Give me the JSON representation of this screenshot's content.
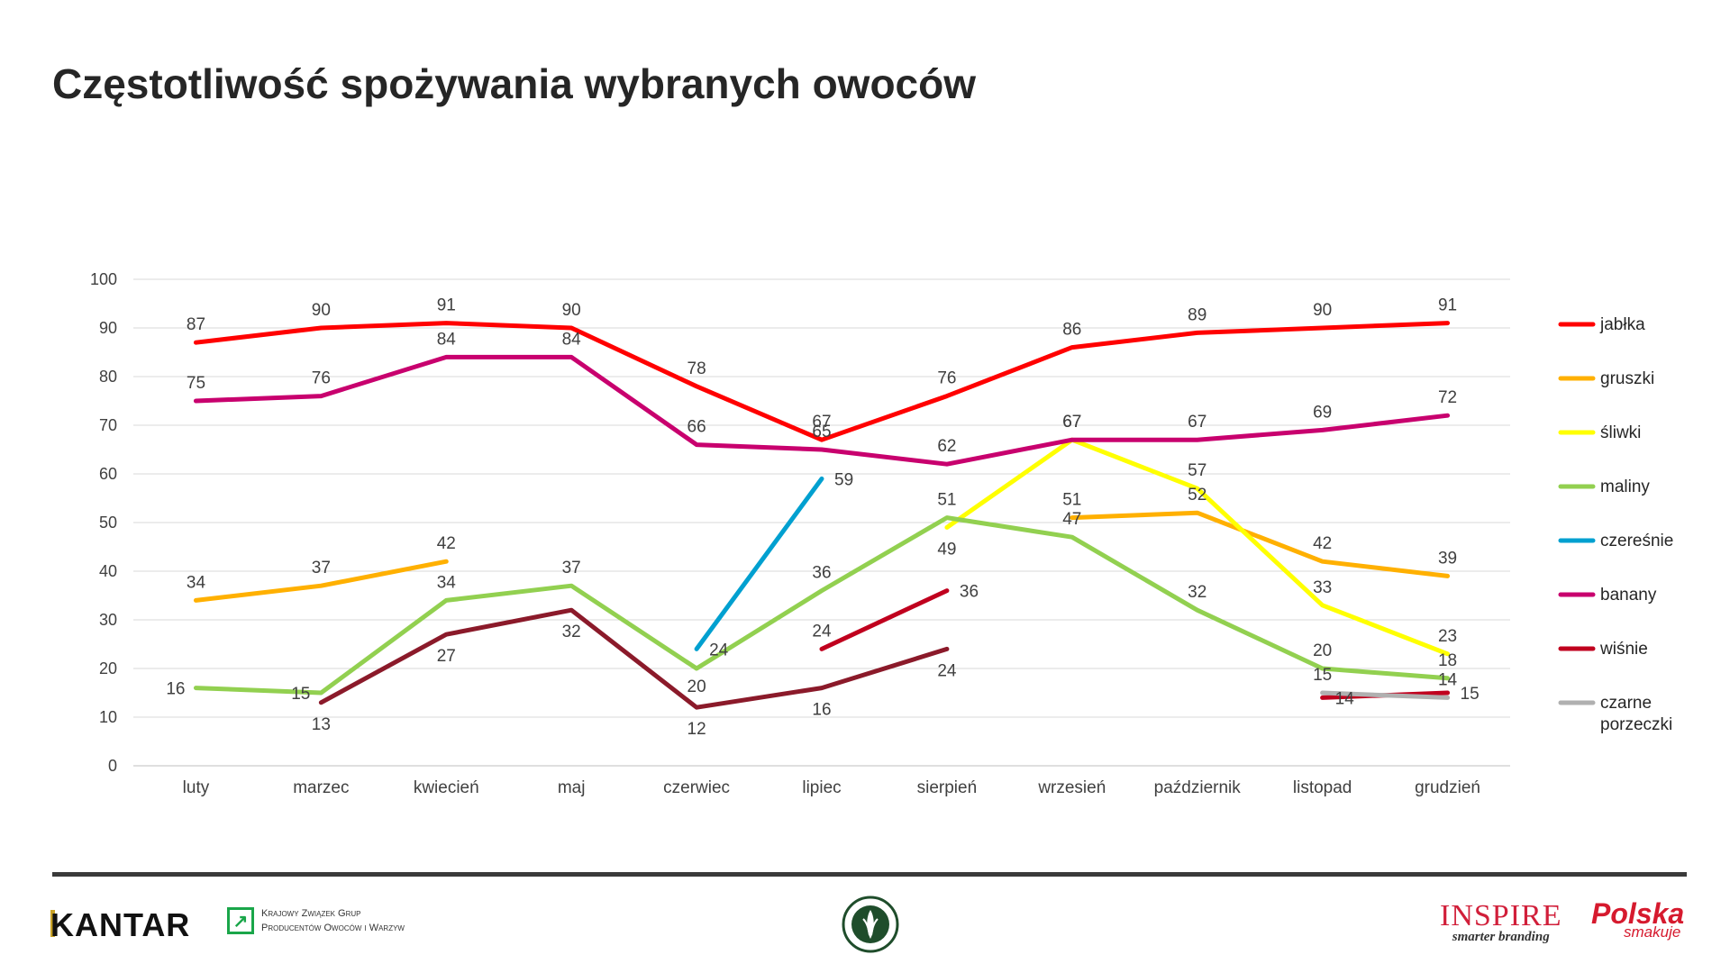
{
  "page": {
    "title": "Częstotliwość spożywania wybranych owoców"
  },
  "footer": {
    "kantar": "KANTAR",
    "kzgp_line1": "Krajowy Związek Grup",
    "kzgp_line2": "Producentów Owoców i Warzyw",
    "inspire_name": "INSPIRE",
    "inspire_tag": "smarter branding",
    "polska_1": "Polska",
    "polska_2": "smakuje"
  },
  "chart_data": {
    "type": "line",
    "categories": [
      "luty",
      "marzec",
      "kwiecień",
      "maj",
      "czerwiec",
      "lipiec",
      "sierpień",
      "wrzesień",
      "październik",
      "listopad",
      "grudzień"
    ],
    "ylim": [
      0,
      100
    ],
    "yticks": [
      0,
      10,
      20,
      30,
      40,
      50,
      60,
      70,
      80,
      90,
      100
    ],
    "grid": true,
    "legend": "right",
    "series": [
      {
        "name": "jabłka",
        "color": "#ff0000",
        "values": [
          87,
          90,
          91,
          90,
          78,
          67,
          76,
          86,
          89,
          90,
          91
        ]
      },
      {
        "name": "gruszki",
        "color": "#ffb000",
        "values": [
          34,
          37,
          42,
          null,
          null,
          null,
          null,
          51,
          52,
          42,
          39
        ]
      },
      {
        "name": "śliwki",
        "color": "#ffff00",
        "values": [
          null,
          null,
          null,
          null,
          null,
          null,
          49,
          67,
          57,
          33,
          23
        ]
      },
      {
        "name": "maliny",
        "color": "#92d050",
        "values": [
          16,
          15,
          34,
          37,
          20,
          36,
          51,
          47,
          32,
          20,
          18
        ]
      },
      {
        "name": "czereśnie",
        "color": "#00a0d0",
        "values": [
          null,
          null,
          null,
          null,
          24,
          59,
          null,
          null,
          null,
          null,
          null
        ]
      },
      {
        "name": "banany",
        "color": "#c8006e",
        "values": [
          75,
          76,
          84,
          84,
          66,
          65,
          62,
          67,
          67,
          69,
          72
        ]
      },
      {
        "name": "wiśnie",
        "color": "#c0001e",
        "values": [
          null,
          null,
          null,
          null,
          null,
          24,
          36,
          null,
          null,
          14,
          15
        ]
      },
      {
        "name": "czarne porzeczki",
        "color": "#b0b0b0",
        "values": [
          null,
          null,
          null,
          null,
          null,
          null,
          null,
          null,
          null,
          15,
          14
        ]
      },
      {
        "name": "",
        "color": "#8b1a2a",
        "values": [
          null,
          13,
          27,
          32,
          12,
          16,
          24,
          null,
          null,
          null,
          null
        ]
      }
    ]
  }
}
